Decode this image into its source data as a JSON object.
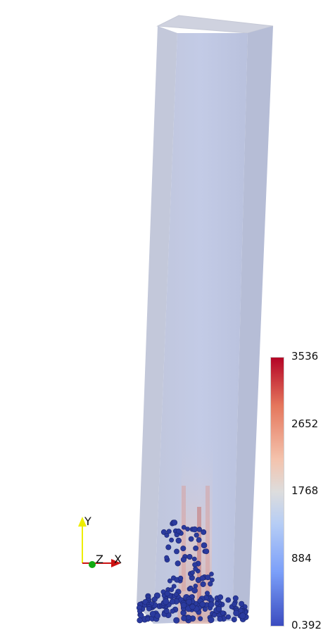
{
  "colorbar": {
    "labels": {
      "max": "3536",
      "q3": "2652",
      "mid": "1768",
      "q1": "884",
      "min": "0.392"
    },
    "values": [
      0.392,
      884,
      1768,
      2652,
      3536
    ],
    "colors": {
      "low": "#3b4cc0",
      "mid_low": "#7b9ff9",
      "mid": "#dddddd",
      "mid_high": "#f49a7b",
      "high": "#b40426"
    }
  },
  "orientation_axes": {
    "y_label": "Y",
    "z_label": "Z",
    "x_label": "X",
    "colors": {
      "x": "#cc1111",
      "y": "#eeee00",
      "z": "#11aa11"
    }
  },
  "scene": {
    "domain_color": "#b3bdd9",
    "particle_color": "#2a3a9e"
  }
}
